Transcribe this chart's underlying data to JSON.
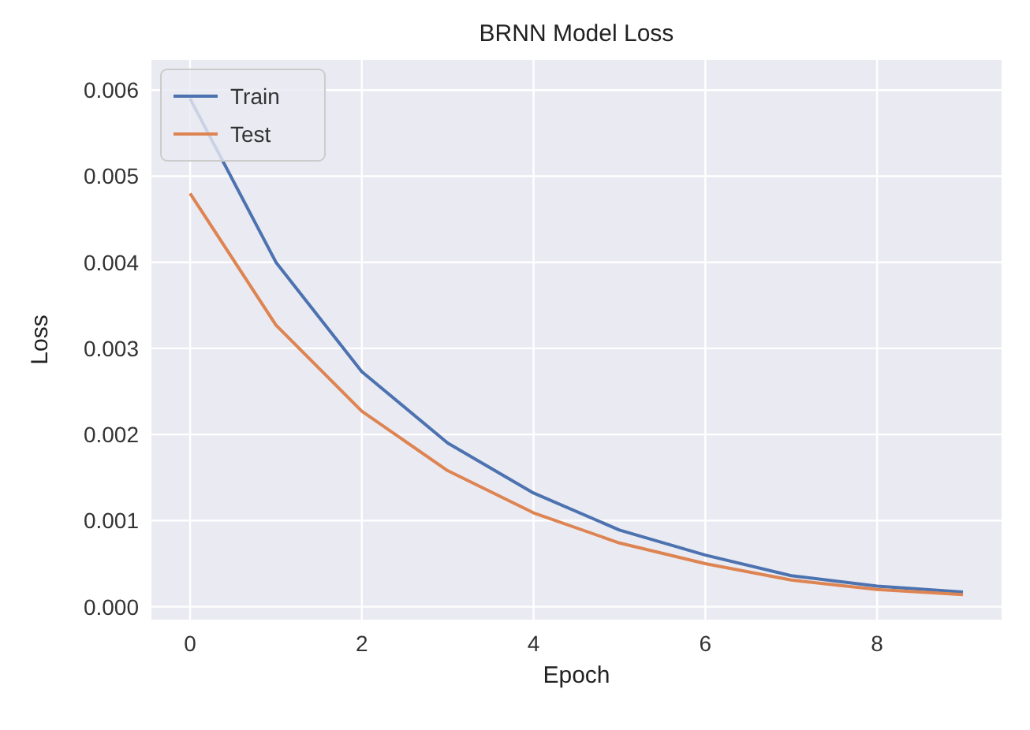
{
  "chart_data": {
    "type": "line",
    "title": "BRNN Model  Loss",
    "xlabel": "Epoch",
    "ylabel": "Loss",
    "x": [
      0,
      1,
      2,
      3,
      4,
      5,
      6,
      7,
      8,
      9
    ],
    "series": [
      {
        "name": "Train",
        "color": "#4c72b0",
        "values": [
          0.0059,
          0.004,
          0.00273,
          0.0019,
          0.00132,
          0.00089,
          0.0006,
          0.00036,
          0.00024,
          0.00017
        ]
      },
      {
        "name": "Test",
        "color": "#dd8452",
        "values": [
          0.0048,
          0.00327,
          0.00227,
          0.00158,
          0.00109,
          0.00074,
          0.0005,
          0.00031,
          0.0002,
          0.00014
        ]
      }
    ],
    "xlim": [
      -0.45,
      9.45
    ],
    "xticks": [
      0,
      2,
      4,
      6,
      8
    ],
    "ylim": [
      -0.00015,
      0.00635
    ],
    "yticks": [
      {
        "value": 0,
        "label": "0.000"
      },
      {
        "value": 0.001,
        "label": "0.001"
      },
      {
        "value": 0.002,
        "label": "0.002"
      },
      {
        "value": 0.003,
        "label": "0.003"
      },
      {
        "value": 0.004,
        "label": "0.004"
      },
      {
        "value": 0.005,
        "label": "0.005"
      },
      {
        "value": 0.006,
        "label": "0.006"
      }
    ],
    "grid": true,
    "legend": "top left",
    "marker": "none",
    "line_style": "solid"
  }
}
